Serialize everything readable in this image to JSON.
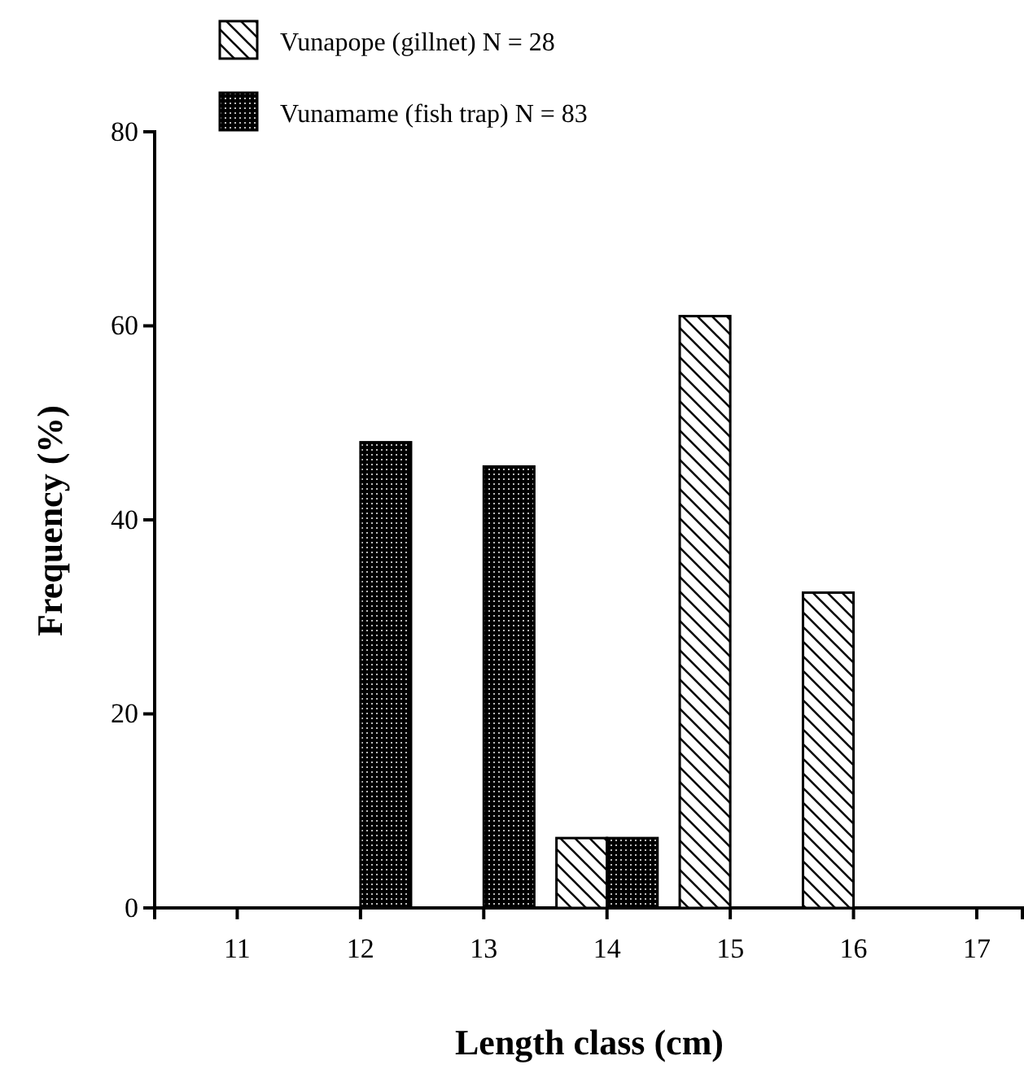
{
  "chart_data": {
    "type": "bar",
    "xlabel": "Length class (cm)",
    "ylabel": "Frequency (%)",
    "categories": [
      "11",
      "12",
      "13",
      "14",
      "15",
      "16",
      "17"
    ],
    "ylim": [
      0,
      80
    ],
    "yticks": [
      0,
      20,
      40,
      60,
      80
    ],
    "legend": "top left",
    "grid": false,
    "series": [
      {
        "name": "Vunapope (gillnet) N = 28",
        "color": "#000000",
        "values": [
          null,
          null,
          null,
          7.2,
          61,
          32.5,
          null
        ]
      },
      {
        "name": "Vunamame (fish trap) N = 83",
        "color": "#000000",
        "values": [
          null,
          48,
          45.5,
          7.2,
          null,
          null,
          null
        ]
      }
    ]
  }
}
